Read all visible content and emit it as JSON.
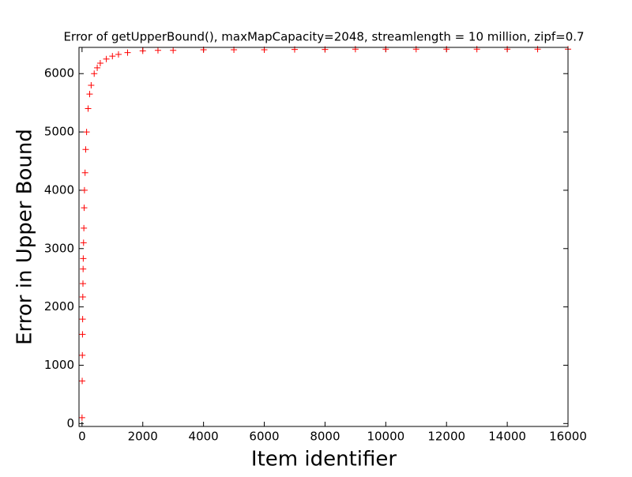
{
  "chart_data": {
    "type": "scatter",
    "title": "Error of getUpperBound(), maxMapCapacity=2048, streamlength = 10 million, zipf=0.7",
    "x_label": "Item identifier",
    "y_label": "Error in Upper Bound",
    "marker": "+",
    "color": "#ff0000",
    "x": [
      0,
      5,
      10,
      15,
      20,
      25,
      30,
      35,
      40,
      50,
      60,
      70,
      80,
      100,
      120,
      150,
      200,
      250,
      300,
      400,
      500,
      600,
      800,
      1000,
      1200,
      1500,
      2000,
      2500,
      3000,
      4000,
      5000,
      6000,
      7000,
      8000,
      9000,
      10000,
      11000,
      12000,
      13000,
      14000,
      15000,
      16000
    ],
    "y": [
      100,
      730,
      1170,
      1530,
      1790,
      2170,
      2400,
      2650,
      2830,
      3100,
      3350,
      3700,
      4000,
      4300,
      4700,
      5000,
      5400,
      5650,
      5800,
      6000,
      6100,
      6180,
      6250,
      6300,
      6330,
      6360,
      6390,
      6400,
      6400,
      6410,
      6410,
      6410,
      6415,
      6415,
      6420,
      6420,
      6420,
      6420,
      6420,
      6420,
      6420,
      6420
    ],
    "xlim": [
      -100,
      16000
    ],
    "ylim": [
      -50,
      6450
    ],
    "xticks": [
      0,
      2000,
      4000,
      6000,
      8000,
      10000,
      12000,
      14000,
      16000
    ],
    "yticks": [
      0,
      1000,
      2000,
      3000,
      4000,
      5000,
      6000
    ]
  }
}
